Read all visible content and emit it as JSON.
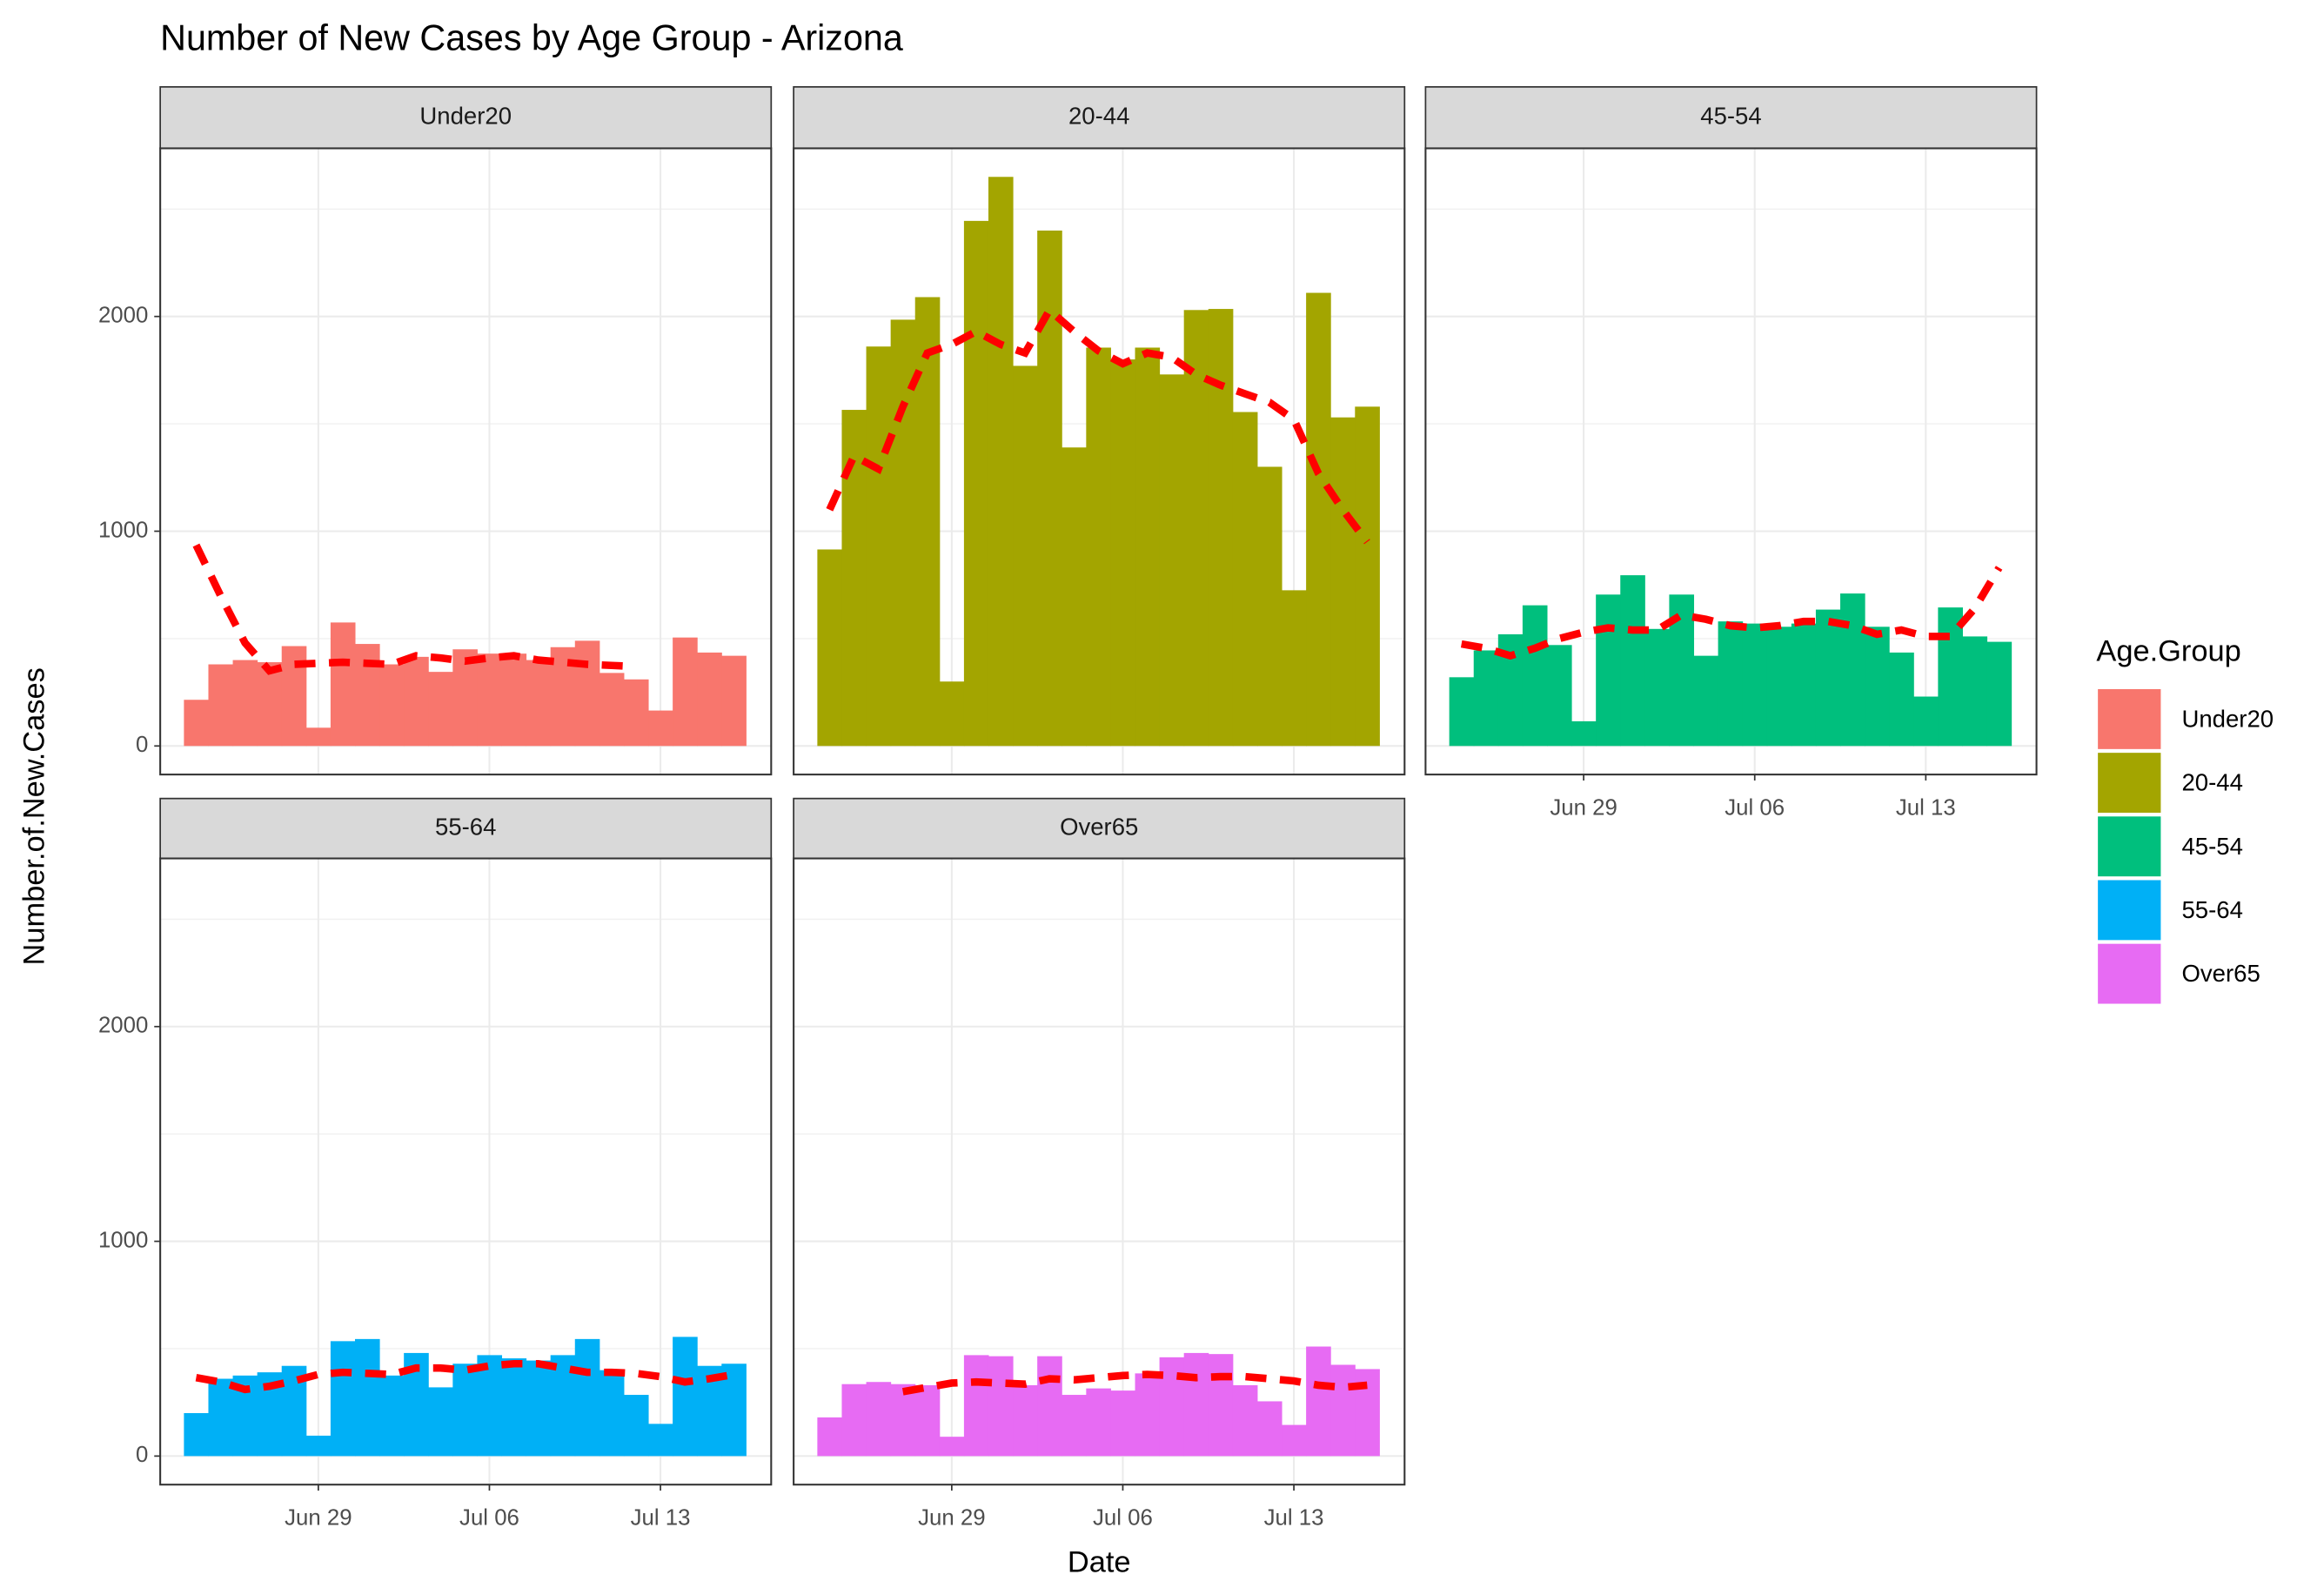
{
  "chart_data": {
    "type": "bar",
    "title": "Number of New Cases by Age Group - Arizona",
    "x_label": "Date",
    "y_label": "Number.of.New.Cases",
    "legend_title": "Age.Group",
    "categories": [
      "Jun 24",
      "Jun 25",
      "Jun 26",
      "Jun 27",
      "Jun 28",
      "Jun 29",
      "Jun 30",
      "Jul 01",
      "Jul 02",
      "Jul 03",
      "Jul 04",
      "Jul 05",
      "Jul 06",
      "Jul 07",
      "Jul 08",
      "Jul 09",
      "Jul 10",
      "Jul 11",
      "Jul 12",
      "Jul 13",
      "Jul 14",
      "Jul 15",
      "Jul 16"
    ],
    "xticks": [
      "Jun 29",
      "Jul 06",
      "Jul 13"
    ],
    "ylim": [
      -133,
      2783
    ],
    "yticks": [
      0,
      1000,
      2000
    ],
    "yminorticks": [
      500,
      1500,
      2500
    ],
    "grid": true,
    "trend_color": "#ff0000",
    "series": [
      {
        "name": "Under20",
        "color": "#f8766d",
        "values": [
          215,
          380,
          400,
          390,
          465,
          85,
          575,
          475,
          380,
          415,
          345,
          450,
          430,
          430,
          400,
          460,
          490,
          340,
          310,
          165,
          505,
          435,
          420
        ],
        "trend": [
          935,
          700,
          480,
          350,
          380,
          385,
          390,
          385,
          380,
          420,
          410,
          395,
          410,
          420,
          400,
          390,
          380,
          375,
          370,
          null,
          null,
          null,
          null
        ]
      },
      {
        "name": "20-44",
        "color": "#a3a500",
        "values": [
          915,
          1565,
          1860,
          1985,
          2090,
          300,
          2445,
          2650,
          1770,
          2400,
          1390,
          1855,
          1800,
          1855,
          1730,
          2030,
          2035,
          1555,
          1300,
          725,
          2110,
          1530,
          1580
        ],
        "trend": [
          1100,
          1350,
          1290,
          1580,
          1830,
          1870,
          1930,
          1870,
          1830,
          2030,
          1930,
          1840,
          1780,
          1830,
          1810,
          1730,
          1680,
          1640,
          1600,
          1520,
          1270,
          1100,
          950
        ]
      },
      {
        "name": "45-54",
        "color": "#00bf7d",
        "values": [
          320,
          445,
          520,
          655,
          470,
          115,
          705,
          795,
          545,
          705,
          420,
          580,
          570,
          555,
          570,
          635,
          710,
          555,
          435,
          230,
          645,
          510,
          485
        ],
        "trend": [
          475,
          455,
          420,
          455,
          500,
          530,
          550,
          540,
          540,
          610,
          590,
          560,
          550,
          560,
          580,
          580,
          560,
          520,
          540,
          510,
          510,
          640,
          830
        ]
      },
      {
        "name": "55-64",
        "color": "#00b0f6",
        "values": [
          200,
          360,
          375,
          390,
          420,
          95,
          535,
          545,
          375,
          480,
          320,
          430,
          470,
          455,
          445,
          470,
          545,
          400,
          285,
          150,
          555,
          420,
          430
        ],
        "trend": [
          365,
          345,
          310,
          325,
          350,
          380,
          390,
          385,
          380,
          410,
          410,
          400,
          420,
          430,
          430,
          410,
          390,
          390,
          385,
          370,
          345,
          360,
          380
        ]
      },
      {
        "name": "Over65",
        "color": "#e76bf3",
        "values": [
          180,
          335,
          345,
          335,
          330,
          90,
          470,
          465,
          330,
          465,
          285,
          315,
          305,
          385,
          460,
          480,
          475,
          330,
          255,
          145,
          510,
          425,
          405
        ],
        "trend": [
          null,
          null,
          null,
          300,
          320,
          340,
          345,
          340,
          335,
          360,
          355,
          365,
          375,
          380,
          375,
          365,
          370,
          370,
          360,
          350,
          330,
          320,
          330
        ]
      }
    ]
  }
}
